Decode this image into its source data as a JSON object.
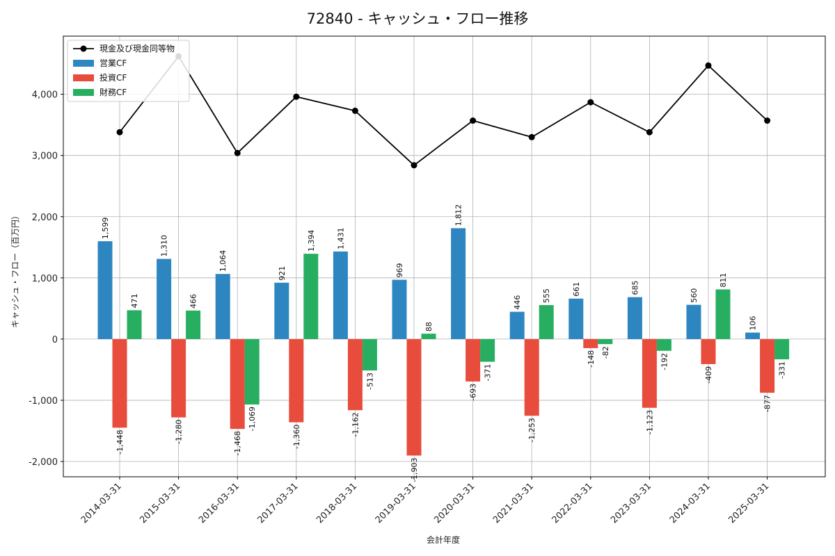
{
  "chart_data": {
    "type": "bar",
    "title": "72840 - キャッシュ・フロー推移",
    "xlabel": "会計年度",
    "ylabel": "キャッシュ・フロー（百万円）",
    "categories": [
      "2014-03-31",
      "2015-03-31",
      "2016-03-31",
      "2017-03-31",
      "2018-03-31",
      "2019-03-31",
      "2020-03-31",
      "2021-03-31",
      "2022-03-31",
      "2023-03-31",
      "2024-03-31",
      "2025-03-31"
    ],
    "series": [
      {
        "name": "営業CF",
        "type": "bar",
        "color": "#2e86c1",
        "values": [
          1599,
          1310,
          1064,
          921,
          1431,
          969,
          1812,
          446,
          661,
          685,
          560,
          106
        ]
      },
      {
        "name": "投資CF",
        "type": "bar",
        "color": "#e74c3c",
        "values": [
          -1448,
          -1280,
          -1468,
          -1360,
          -1162,
          -1903,
          -693,
          -1253,
          -148,
          -1123,
          -409,
          -877
        ]
      },
      {
        "name": "財務CF",
        "type": "bar",
        "color": "#27ae60",
        "values": [
          471,
          466,
          -1069,
          1394,
          -513,
          88,
          -371,
          555,
          -82,
          -192,
          811,
          -331
        ]
      },
      {
        "name": "現金及び現金同等物",
        "type": "line",
        "color": "#000000",
        "values": [
          3380,
          4620,
          3040,
          3960,
          3730,
          2840,
          3570,
          3300,
          3870,
          3380,
          4470,
          3570
        ]
      }
    ],
    "ylim": [
      -2250,
      4950
    ],
    "yticks": [
      -2000,
      -1000,
      0,
      1000,
      2000,
      3000,
      4000
    ],
    "ytick_labels": [
      "-2,000",
      "-1,000",
      "0",
      "1,000",
      "2,000",
      "3,000",
      "4,000"
    ],
    "grid": true,
    "legend_position": "top-left"
  }
}
